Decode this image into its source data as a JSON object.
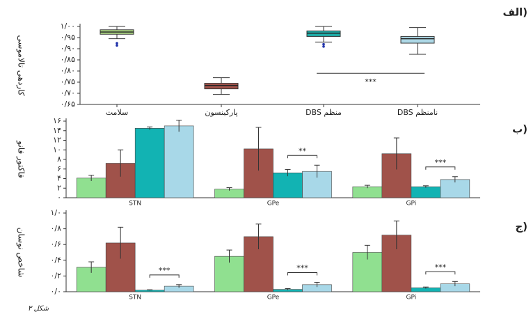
{
  "chart_data": [
    {
      "type": "box",
      "panel_label": "الف)",
      "y_label": "کاردهی تالاموسی",
      "categories": [
        "سلامت",
        "پارکینسون",
        "DBS منظم",
        "DBS نامنظم"
      ],
      "colors": [
        "#b5e08a",
        "#a0524a",
        "#1fb0ab",
        "#add8e6"
      ],
      "boxes": [
        {
          "low": 0.945,
          "q1": 0.965,
          "median": 0.975,
          "q3": 0.985,
          "high": 1.0,
          "outliers": [
            0.925,
            0.915
          ]
        },
        {
          "low": 0.695,
          "q1": 0.72,
          "median": 0.735,
          "q3": 0.745,
          "high": 0.77,
          "outliers": []
        },
        {
          "low": 0.93,
          "q1": 0.955,
          "median": 0.97,
          "q3": 0.98,
          "high": 1.0,
          "outliers": [
            0.92,
            0.91
          ]
        },
        {
          "low": 0.875,
          "q1": 0.925,
          "median": 0.945,
          "q3": 0.955,
          "high": 0.995,
          "outliers": []
        }
      ],
      "annotations": [
        {
          "text": "***",
          "categories": [
            2,
            3
          ]
        }
      ],
      "ylim": [
        0.65,
        1.0
      ],
      "yticks": [
        {
          "value": 0.65,
          "label": "۰/۶۵"
        },
        {
          "value": 0.7,
          "label": "۰/۷۰"
        },
        {
          "value": 0.75,
          "label": "۰/۷۵"
        },
        {
          "value": 0.8,
          "label": "۰/۸۰"
        },
        {
          "value": 0.85,
          "label": "۰/۸۵"
        },
        {
          "value": 0.9,
          "label": "۰/۹۰"
        },
        {
          "value": 0.95,
          "label": "۰/۹۵"
        },
        {
          "value": 1.0,
          "label": "۱/۰۰"
        }
      ]
    },
    {
      "type": "bar",
      "panel_label": "ب)",
      "y_label": "فاکتور فانو",
      "categories": [
        "STN",
        "GPe",
        "GPi"
      ],
      "series": [
        {
          "color": "#90e090",
          "values": [
            4.1,
            1.8,
            2.3
          ],
          "errors": [
            0.6,
            0.3,
            0.3
          ]
        },
        {
          "color": "#a0524a",
          "values": [
            7.2,
            10.2,
            9.2
          ],
          "errors": [
            2.8,
            4.5,
            3.3
          ]
        },
        {
          "color": "#12b3b3",
          "values": [
            14.5,
            5.2,
            2.3
          ],
          "errors": [
            0.3,
            0.7,
            0.2
          ]
        },
        {
          "color": "#a8d8e8",
          "values": [
            15.0,
            5.5,
            3.8
          ],
          "errors": [
            1.2,
            1.3,
            0.6
          ]
        }
      ],
      "annotations": [
        {
          "text": "**",
          "category": 1,
          "series": [
            2,
            3
          ]
        },
        {
          "text": "***",
          "category": 2,
          "series": [
            2,
            3
          ]
        }
      ],
      "ylim": [
        0,
        16
      ],
      "yticks": [
        {
          "value": 0,
          "label": "۰"
        },
        {
          "value": 2,
          "label": "۲"
        },
        {
          "value": 4,
          "label": "۴"
        },
        {
          "value": 6,
          "label": "۶"
        },
        {
          "value": 8,
          "label": "۸"
        },
        {
          "value": 10,
          "label": "۱۰"
        },
        {
          "value": 12,
          "label": "۱۲"
        },
        {
          "value": 14,
          "label": "۱۴"
        },
        {
          "value": 16,
          "label": "۱۶"
        }
      ]
    },
    {
      "type": "bar",
      "panel_label": "ج)",
      "y_label": "شاخص نوسان",
      "categories": [
        "STN",
        "GPe",
        "GPi"
      ],
      "series": [
        {
          "color": "#90e090",
          "values": [
            0.31,
            0.45,
            0.5
          ],
          "errors": [
            0.07,
            0.08,
            0.09
          ]
        },
        {
          "color": "#a0524a",
          "values": [
            0.62,
            0.7,
            0.72
          ],
          "errors": [
            0.2,
            0.16,
            0.18
          ]
        },
        {
          "color": "#12b3b3",
          "values": [
            0.02,
            0.03,
            0.05
          ],
          "errors": [
            0.005,
            0.01,
            0.01
          ]
        },
        {
          "color": "#a8d8e8",
          "values": [
            0.07,
            0.09,
            0.1
          ],
          "errors": [
            0.02,
            0.03,
            0.03
          ]
        }
      ],
      "annotations": [
        {
          "text": "***",
          "category": 0,
          "series": [
            2,
            3
          ]
        },
        {
          "text": "***",
          "category": 1,
          "series": [
            2,
            3
          ]
        },
        {
          "text": "***",
          "category": 2,
          "series": [
            2,
            3
          ]
        }
      ],
      "ylim": [
        0,
        1.0
      ],
      "yticks": [
        {
          "value": 0,
          "label": "۰/۰"
        },
        {
          "value": 0.2,
          "label": "۰/۲"
        },
        {
          "value": 0.4,
          "label": "۰/۴"
        },
        {
          "value": 0.6,
          "label": "۰/۶"
        },
        {
          "value": 0.8,
          "label": "۰/۸"
        },
        {
          "value": 1.0,
          "label": "۱/۰"
        }
      ]
    }
  ],
  "footer": "شکل ۳"
}
